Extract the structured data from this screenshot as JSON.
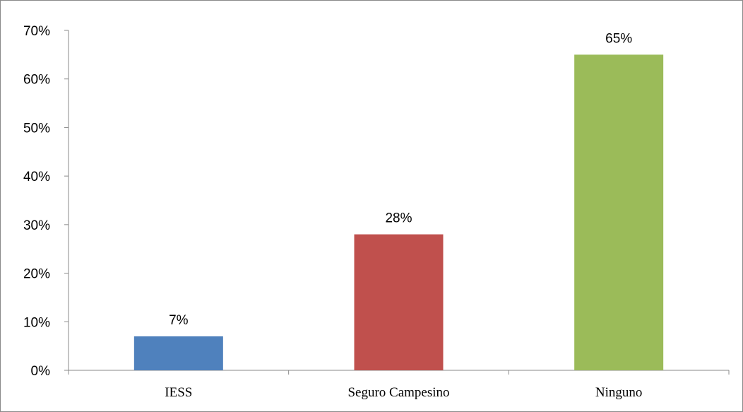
{
  "chart_data": {
    "type": "bar",
    "categories": [
      "IESS",
      "Seguro Campesino",
      "Ninguno"
    ],
    "values": [
      0.07,
      0.28,
      0.65
    ],
    "data_labels": [
      "7%",
      "28%",
      "65%"
    ],
    "colors": [
      "#4f81bd",
      "#c0504d",
      "#9bbb59"
    ],
    "ylim": [
      0,
      0.7
    ],
    "y_ticks": [
      0,
      0.1,
      0.2,
      0.3,
      0.4,
      0.5,
      0.6,
      0.7
    ],
    "y_tick_labels": [
      "0%",
      "10%",
      "20%",
      "30%",
      "40%",
      "50%",
      "60%",
      "70%"
    ],
    "title": "",
    "xlabel": "",
    "ylabel": "",
    "grid": false,
    "legend": "none"
  }
}
